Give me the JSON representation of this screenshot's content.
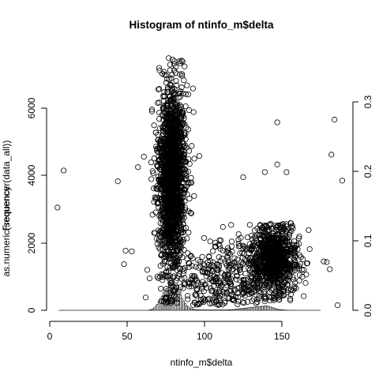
{
  "chart_data": {
    "type": "scatter",
    "title": "Histogram of ntinfo_m$delta",
    "xlabel": "ntinfo_m$delta",
    "ylabel_histogram": "Frequency",
    "ylabel_overlay": "as.numeric(sequencer(data_all))",
    "xlim": [
      0,
      190
    ],
    "ylim_left": [
      0,
      6000
    ],
    "ylim_right": [
      0,
      0.3
    ],
    "x_ticks": [
      "0",
      "50",
      "100",
      "150"
    ],
    "y_ticks_left": [
      "0",
      "2000",
      "4000",
      "6000"
    ],
    "y_ticks_right": [
      "0.0",
      "0.1",
      "0.2",
      "0.3"
    ],
    "grid": false,
    "histogram": {
      "bin_width": 1,
      "x_start": 6,
      "counts": [
        0,
        0,
        0,
        0,
        0,
        0,
        0,
        0,
        0,
        0,
        0,
        0,
        0,
        0,
        0,
        0,
        0,
        0,
        0,
        0,
        0,
        0,
        0,
        0,
        0,
        0,
        0,
        0,
        0,
        0,
        0,
        0,
        0,
        0,
        0,
        0,
        0,
        0,
        0,
        0,
        0,
        0,
        0,
        0,
        0,
        0,
        0,
        0,
        0,
        0,
        0,
        0,
        0,
        0,
        0,
        0,
        0,
        0,
        10,
        20,
        40,
        70,
        120,
        180,
        260,
        340,
        420,
        520,
        600,
        650,
        700,
        760,
        800,
        780,
        760,
        720,
        650,
        560,
        460,
        360,
        280,
        200,
        140,
        100,
        70,
        50,
        35,
        25,
        20,
        15,
        12,
        10,
        10,
        10,
        10,
        10,
        10,
        10,
        10,
        10,
        10,
        10,
        10,
        10,
        10,
        10,
        10,
        10,
        12,
        14,
        16,
        20,
        25,
        30,
        35,
        40,
        45,
        50,
        55,
        60,
        65,
        70,
        75,
        80,
        85,
        90,
        95,
        100,
        105,
        110,
        115,
        120,
        125,
        130,
        125,
        115,
        100,
        85,
        70,
        55,
        40,
        30,
        20,
        15,
        10,
        8,
        6,
        4,
        3,
        2,
        2,
        1,
        1,
        1,
        0,
        0,
        0,
        0,
        0,
        0,
        0,
        0,
        0,
        0,
        0,
        0,
        0,
        0,
        0
      ]
    },
    "scatter_clusters": [
      {
        "center_x": 79,
        "spread_x": 4.5,
        "center_y": 3900,
        "spread_y": 1400,
        "points": 1800,
        "min_y": 200,
        "max_y": 7500
      },
      {
        "center_x": 145,
        "spread_x": 8,
        "center_y": 1500,
        "spread_y": 520,
        "points": 900,
        "min_y": 250,
        "max_y": 2600
      },
      {
        "center_x": 112,
        "spread_x": 14,
        "center_y": 900,
        "spread_y": 550,
        "points": 350,
        "min_y": 150,
        "max_y": 3000
      }
    ],
    "outliers": [
      {
        "x": 5,
        "y": 3050
      },
      {
        "x": 9,
        "y": 4150
      },
      {
        "x": 44,
        "y": 3830
      },
      {
        "x": 57,
        "y": 4250
      },
      {
        "x": 147,
        "y": 5580
      },
      {
        "x": 184,
        "y": 5660
      },
      {
        "x": 182,
        "y": 4620
      },
      {
        "x": 189,
        "y": 3850
      },
      {
        "x": 147,
        "y": 4330
      },
      {
        "x": 139,
        "y": 4100
      },
      {
        "x": 153,
        "y": 4100
      },
      {
        "x": 125,
        "y": 3950
      },
      {
        "x": 177,
        "y": 1450
      },
      {
        "x": 179,
        "y": 1430
      },
      {
        "x": 186,
        "y": 150
      },
      {
        "x": 181,
        "y": 1220
      },
      {
        "x": 48,
        "y": 1370
      },
      {
        "x": 49,
        "y": 1770
      },
      {
        "x": 53,
        "y": 1750
      },
      {
        "x": 62,
        "y": 380
      },
      {
        "x": 63,
        "y": 1200
      }
    ]
  }
}
